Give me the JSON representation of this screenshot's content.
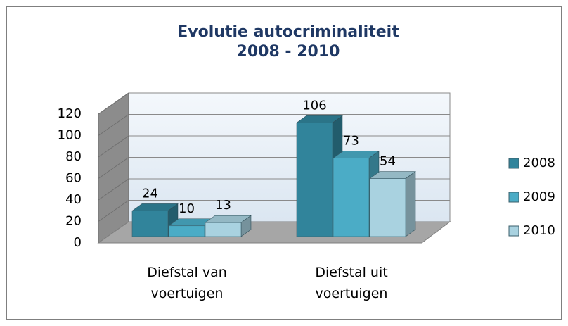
{
  "chart_data": {
    "type": "bar3d",
    "title": "Evolutie autocriminaliteit\n2008 - 2010",
    "categories": [
      "Diefstal van voertuigen",
      "Diefstal uit voertuigen"
    ],
    "series": [
      {
        "name": "2008",
        "color": "#31849b",
        "values": [
          24,
          106
        ]
      },
      {
        "name": "2009",
        "color": "#4bacc6",
        "values": [
          10,
          73
        ]
      },
      {
        "name": "2010",
        "color": "#a9d2e0",
        "values": [
          13,
          54
        ]
      }
    ],
    "ylim": [
      0,
      120
    ],
    "yticks": [
      0,
      20,
      40,
      60,
      80,
      100,
      120
    ],
    "grid": true,
    "legend": "right"
  }
}
